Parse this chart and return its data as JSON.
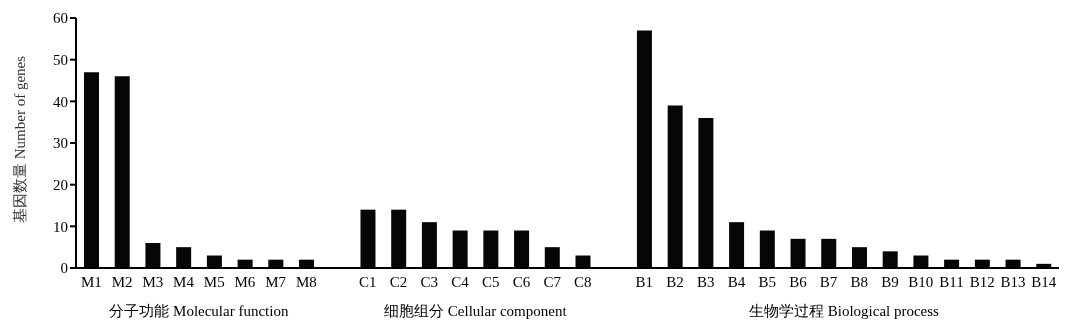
{
  "chart_data": {
    "type": "bar",
    "ylabel": "基因数量 Number of genes",
    "categories": [
      "M1",
      "M2",
      "M3",
      "M4",
      "M5",
      "M6",
      "M7",
      "M8",
      null,
      "C1",
      "C2",
      "C3",
      "C4",
      "C5",
      "C6",
      "C7",
      "C8",
      null,
      "B1",
      "B2",
      "B3",
      "B4",
      "B5",
      "B6",
      "B7",
      "B8",
      "B9",
      "B10",
      "B11",
      "B12",
      "B13",
      "B14"
    ],
    "values": [
      47,
      46,
      6,
      5,
      3,
      2,
      2,
      2,
      null,
      14,
      14,
      11,
      9,
      9,
      9,
      5,
      3,
      null,
      57,
      39,
      36,
      11,
      9,
      7,
      7,
      5,
      4,
      3,
      2,
      2,
      2,
      1
    ],
    "color": "#060606",
    "ylim": [
      0,
      60
    ],
    "yticks": [
      0,
      10,
      20,
      30,
      40,
      50,
      60
    ],
    "annotations": [
      "分子功能 Molecular function",
      "细胞组分 Cellular component",
      "生物学过程 Biological process"
    ]
  }
}
